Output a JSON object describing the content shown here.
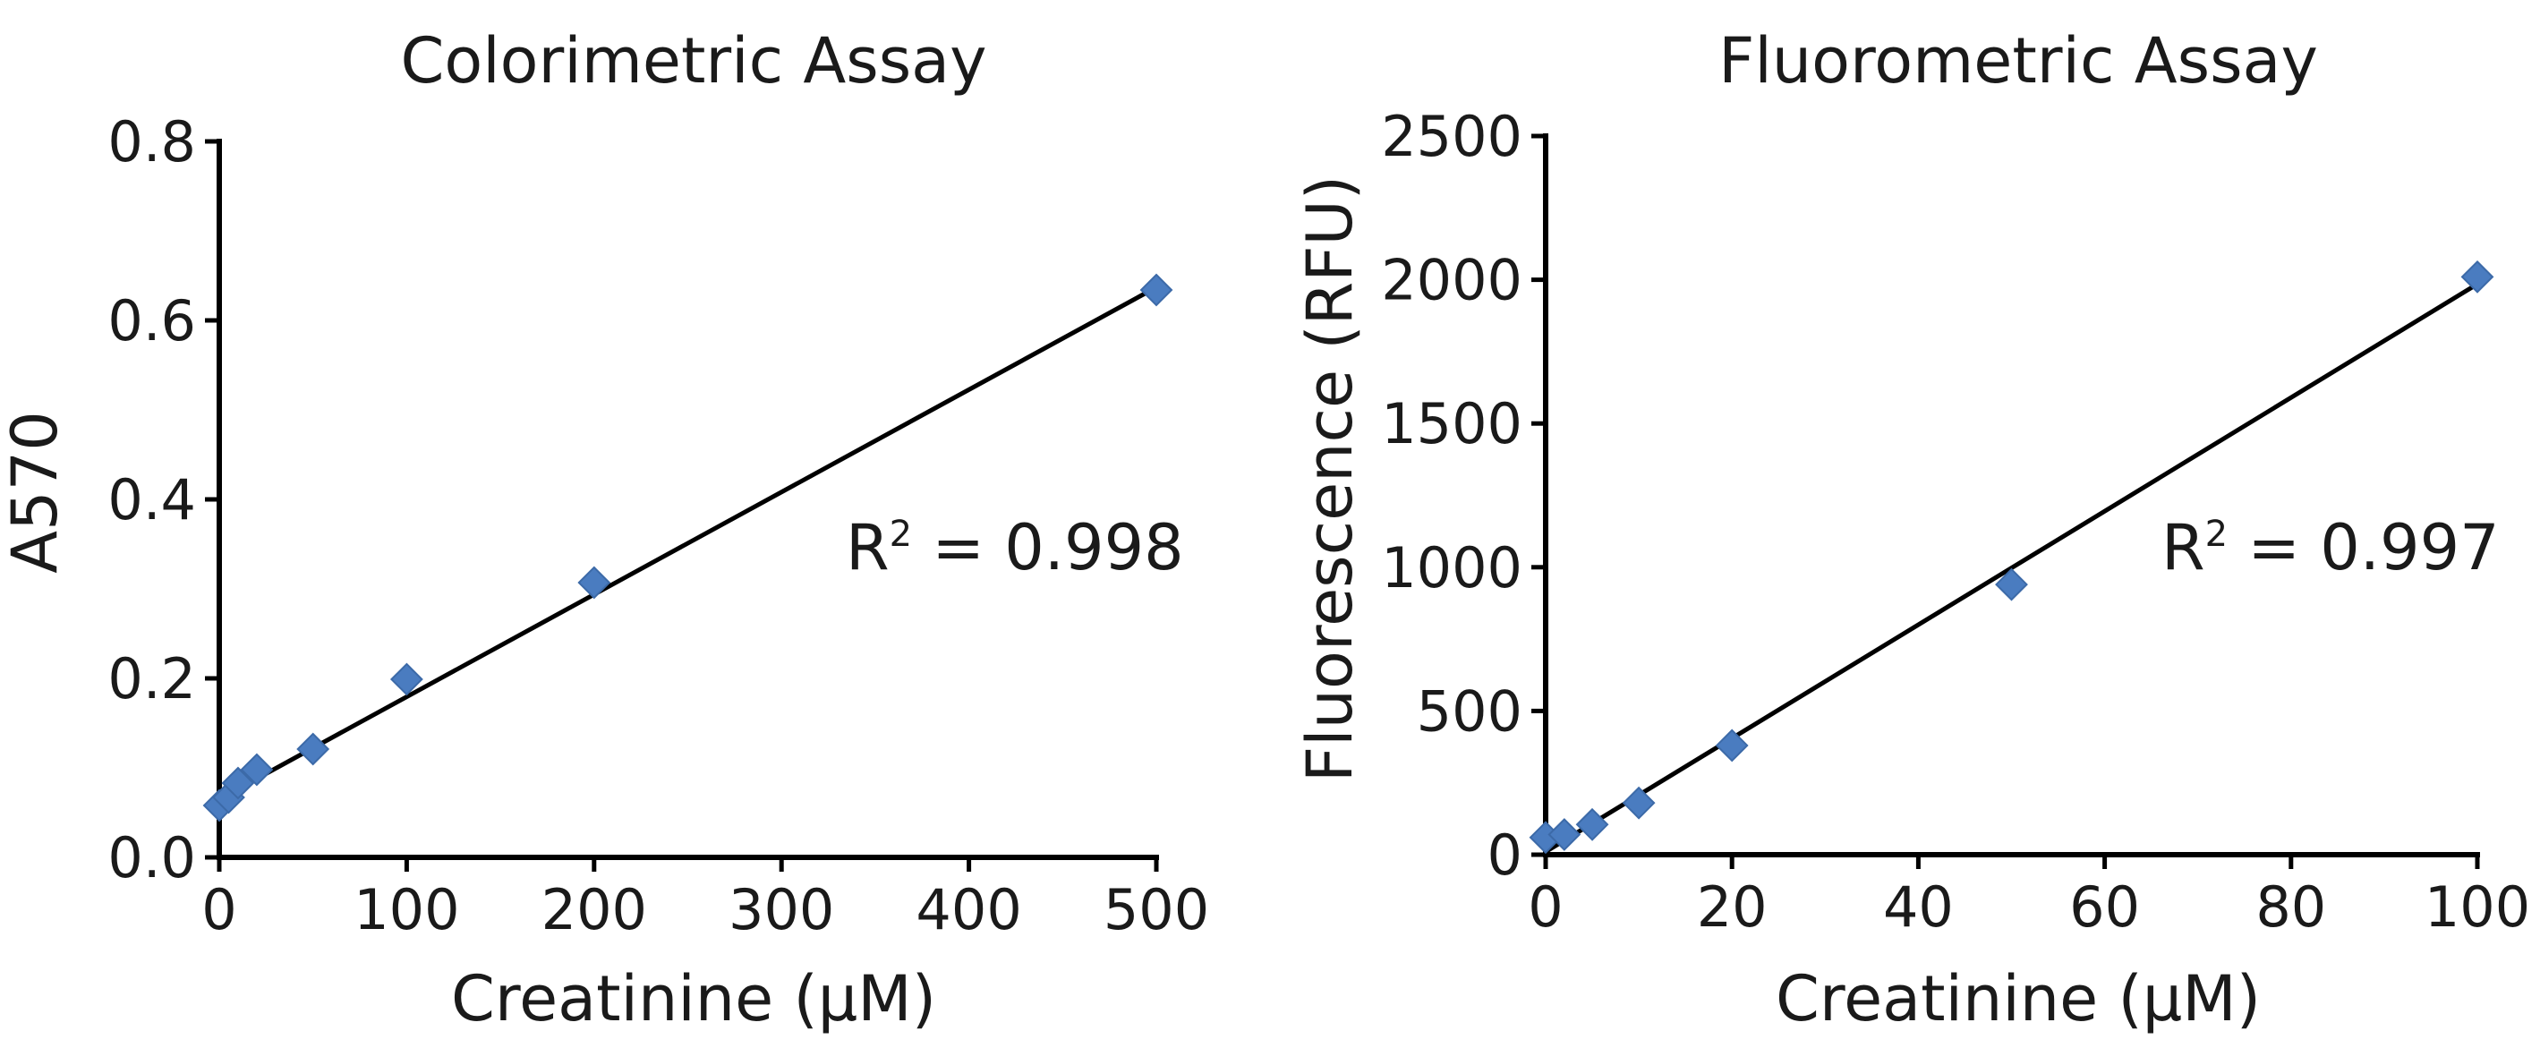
{
  "chart_data": [
    {
      "type": "scatter",
      "title": "Colorimetric Assay",
      "xlabel": "Creatinine (µM)",
      "ylabel": "A570",
      "xlim": [
        0,
        500
      ],
      "ylim": [
        0,
        0.8
      ],
      "xticks": [
        "0",
        "100",
        "200",
        "300",
        "400",
        "500"
      ],
      "yticks": [
        "0.0",
        "0.2",
        "0.4",
        "0.6",
        "0.8"
      ],
      "grid": false,
      "marker": "diamond",
      "marker_color": "#4a7cc0",
      "series": [
        {
          "points": [
            {
              "x": 0,
              "y": 0.058
            },
            {
              "x": 5,
              "y": 0.067
            },
            {
              "x": 10,
              "y": 0.083
            },
            {
              "x": 20,
              "y": 0.098
            },
            {
              "x": 50,
              "y": 0.121
            },
            {
              "x": 100,
              "y": 0.199
            },
            {
              "x": 200,
              "y": 0.307
            },
            {
              "x": 500,
              "y": 0.634
            }
          ]
        }
      ],
      "trendline": {
        "x0": 0,
        "y0": 0.065,
        "x1": 500,
        "y1": 0.637
      },
      "annotation": {
        "base": "R",
        "sup": "2",
        "rest": " = 0.998"
      }
    },
    {
      "type": "scatter",
      "title": "Fluorometric Assay",
      "xlabel": "Creatinine (µM)",
      "ylabel": "Fluorescence (RFU)",
      "xlim": [
        0,
        100
      ],
      "ylim": [
        0,
        2500
      ],
      "xticks": [
        "0",
        "20",
        "40",
        "60",
        "80",
        "100"
      ],
      "yticks": [
        "0",
        "500",
        "1000",
        "1500",
        "2000",
        "2500"
      ],
      "grid": false,
      "marker": "diamond",
      "marker_color": "#4a7cc0",
      "series": [
        {
          "points": [
            {
              "x": 0,
              "y": 60
            },
            {
              "x": 2,
              "y": 70
            },
            {
              "x": 5,
              "y": 105
            },
            {
              "x": 10,
              "y": 180
            },
            {
              "x": 20,
              "y": 380
            },
            {
              "x": 50,
              "y": 940
            },
            {
              "x": 100,
              "y": 2010
            }
          ]
        }
      ],
      "trendline": {
        "x0": 0,
        "y0": 10,
        "x1": 100,
        "y1": 1985
      },
      "annotation": {
        "base": "R",
        "sup": "2",
        "rest": " = 0.997"
      }
    }
  ]
}
